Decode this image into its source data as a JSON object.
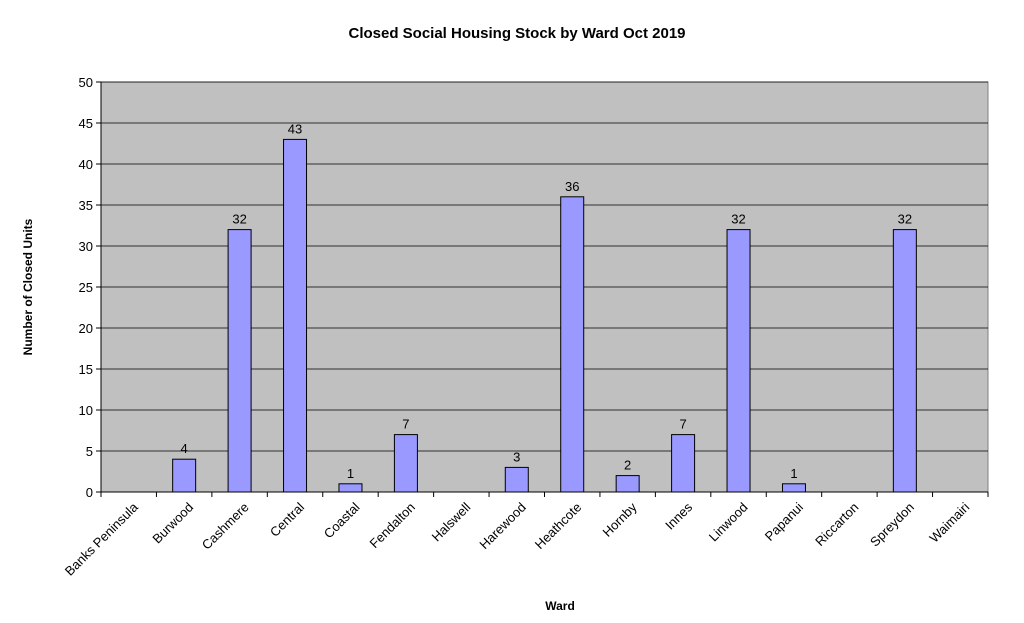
{
  "chart_data": {
    "type": "bar",
    "title": "Closed Social Housing Stock by Ward Oct 2019",
    "xlabel": "Ward",
    "ylabel": "Number of Closed Units",
    "ylim": [
      0,
      50
    ],
    "yticks": [
      0,
      5,
      10,
      15,
      20,
      25,
      30,
      35,
      40,
      45,
      50
    ],
    "grid": true,
    "legend": "none",
    "categories": [
      "Banks Peninsula",
      "Burwood",
      "Cashmere",
      "Central",
      "Coastal",
      "Fendalton",
      "Halswell",
      "Harewood",
      "Heathcote",
      "Hornby",
      "Innes",
      "Linwood",
      "Papanui",
      "Riccarton",
      "Spreydon",
      "Waimairi"
    ],
    "values": [
      0,
      4,
      32,
      43,
      1,
      7,
      0,
      3,
      36,
      2,
      7,
      32,
      1,
      0,
      32,
      0
    ],
    "data_labels": [
      "",
      "4",
      "32",
      "43",
      "1",
      "7",
      "",
      "3",
      "36",
      "2",
      "7",
      "32",
      "1",
      "",
      "32",
      ""
    ],
    "colors": {
      "plot_background": "#c0c0c0",
      "bar_fill": "#9999ff",
      "bar_stroke": "#000000",
      "gridline": "#000000"
    }
  }
}
